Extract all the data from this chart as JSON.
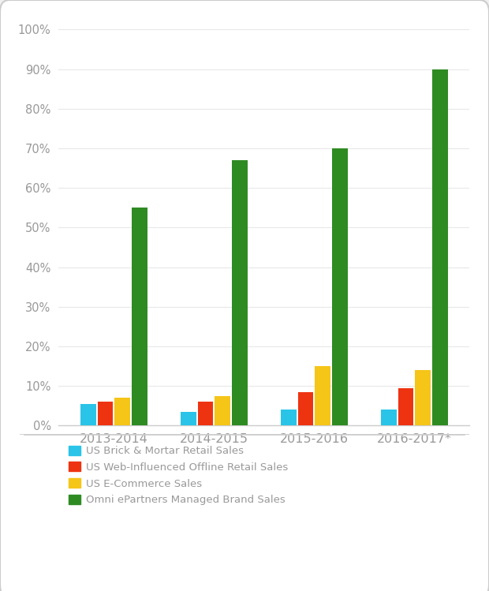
{
  "categories": [
    "2013-2014",
    "2014-2015",
    "2015-2016",
    "2016-2017*"
  ],
  "series": {
    "US Brick & Mortar Retail Sales": [
      5.5,
      3.5,
      4.0,
      4.0
    ],
    "US Web-Influenced Offline Retail Sales": [
      6.0,
      6.0,
      8.5,
      9.5
    ],
    "US E-Commerce Sales": [
      7.0,
      7.5,
      15.0,
      14.0
    ],
    "Omni ePartners Managed Brand Sales": [
      55,
      67,
      70,
      90
    ]
  },
  "colors": {
    "US Brick & Mortar Retail Sales": "#29C4E8",
    "US Web-Influenced Offline Retail Sales": "#EE3311",
    "US E-Commerce Sales": "#F5C518",
    "Omni ePartners Managed Brand Sales": "#2E8B22"
  },
  "ylim": [
    0,
    100
  ],
  "yticks": [
    0,
    10,
    20,
    30,
    40,
    50,
    60,
    70,
    80,
    90,
    100
  ],
  "ytick_labels": [
    "0%",
    "10%",
    "20%",
    "30%",
    "40%",
    "50%",
    "60%",
    "70%",
    "80%",
    "90%",
    "100%"
  ],
  "background_color": "#F0F0F0",
  "card_color": "#FFFFFF",
  "bar_width": 0.17,
  "legend_fontsize": 9.5,
  "tick_fontsize": 10.5,
  "xlabel_fontsize": 11.5,
  "tick_color": "#999999",
  "grid_color": "#E8E8E8",
  "separator_color": "#CCCCCC"
}
